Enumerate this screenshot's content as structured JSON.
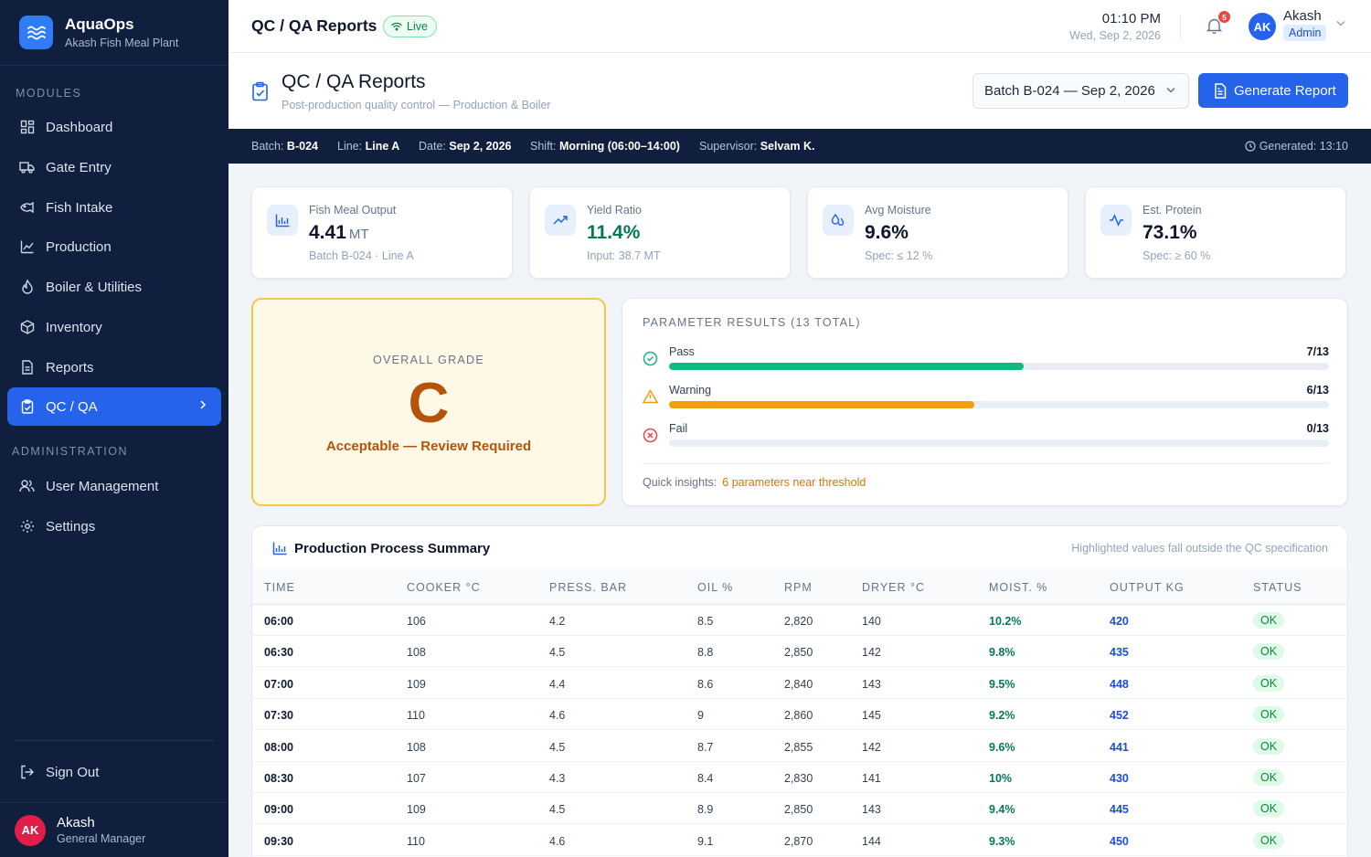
{
  "brand": {
    "name": "AquaOps",
    "subtitle": "Akash Fish Meal Plant"
  },
  "sidebar": {
    "modules_label": "MODULES",
    "admin_label": "ADMINISTRATION",
    "items": [
      {
        "label": "Dashboard",
        "icon": "dashboard-icon"
      },
      {
        "label": "Gate Entry",
        "icon": "truck-icon"
      },
      {
        "label": "Fish Intake",
        "icon": "fish-icon"
      },
      {
        "label": "Production",
        "icon": "factory-icon"
      },
      {
        "label": "Boiler & Utilities",
        "icon": "flame-icon"
      },
      {
        "label": "Inventory",
        "icon": "box-icon"
      },
      {
        "label": "Reports",
        "icon": "file-icon"
      },
      {
        "label": "QC / QA",
        "icon": "clipboard-check-icon",
        "active": true
      }
    ],
    "admin_items": [
      {
        "label": "User Management",
        "icon": "users-icon"
      },
      {
        "label": "Settings",
        "icon": "gear-icon"
      }
    ],
    "sign_out": "Sign Out",
    "user": {
      "initials": "AK",
      "name": "Akash",
      "role": "General Manager"
    }
  },
  "topbar": {
    "title": "QC / QA Reports",
    "live": "Live",
    "time": "01:10 PM",
    "date": "Wed, Sep 2, 2026",
    "notifications": "5",
    "user_initials": "AK",
    "user_name": "Akash",
    "user_role": "Admin"
  },
  "page": {
    "title": "QC / QA Reports",
    "subtitle": "Post-production quality control — Production & Boiler",
    "batch_select": "Batch B-024 — Sep 2, 2026",
    "generate_button": "Generate Report"
  },
  "strip": {
    "batch_label": "Batch:",
    "batch": "B-024",
    "line_label": "Line:",
    "line": "Line A",
    "date_label": "Date:",
    "date": "Sep 2, 2026",
    "shift_label": "Shift:",
    "shift": "Morning (06:00–14:00)",
    "supervisor_label": "Supervisor:",
    "supervisor": "Selvam K.",
    "generated": "Generated: 13:10"
  },
  "kpis": [
    {
      "label": "Fish Meal Output",
      "value": "4.41",
      "unit": "MT",
      "foot": "Batch B-024 · Line A",
      "icon": "chart-icon"
    },
    {
      "label": "Yield Ratio",
      "value": "11.4%",
      "unit": "",
      "foot": "Input: 38.7 MT",
      "icon": "trend-up-icon"
    },
    {
      "label": "Avg Moisture",
      "value": "9.6%",
      "unit": "",
      "foot": "Spec: ≤ 12 %",
      "icon": "droplets-icon"
    },
    {
      "label": "Est. Protein",
      "value": "73.1%",
      "unit": "",
      "foot": "Spec: ≥ 60 %",
      "icon": "activity-icon"
    }
  ],
  "grade": {
    "label": "OVERALL GRADE",
    "letter": "C",
    "description": "Acceptable — Review Required"
  },
  "parameters": {
    "title": "PARAMETER RESULTS (13 TOTAL)",
    "rows": [
      {
        "name": "Pass",
        "count": "7/13",
        "fraction": 0.538,
        "color": "#10b981",
        "icon": "check-circle-icon"
      },
      {
        "name": "Warning",
        "count": "6/13",
        "fraction": 0.462,
        "color": "#f59e0b",
        "icon": "warning-triangle-icon"
      },
      {
        "name": "Fail",
        "count": "0/13",
        "fraction": 0,
        "color": "#ef4444",
        "icon": "x-circle-icon"
      }
    ],
    "insight_label": "Quick insights:",
    "insight_value": "6 parameters near threshold"
  },
  "table": {
    "title": "Production Process Summary",
    "note": "Highlighted values fall outside the QC specification",
    "columns": [
      "TIME",
      "COOKER °C",
      "PRESS. BAR",
      "OIL %",
      "RPM",
      "DRYER °C",
      "MOIST. %",
      "OUTPUT KG",
      "STATUS"
    ],
    "rows": [
      [
        "06:00",
        "106",
        "4.2",
        "8.5",
        "2,820",
        "140",
        "10.2%",
        "420",
        "OK"
      ],
      [
        "06:30",
        "108",
        "4.5",
        "8.8",
        "2,850",
        "142",
        "9.8%",
        "435",
        "OK"
      ],
      [
        "07:00",
        "109",
        "4.4",
        "8.6",
        "2,840",
        "143",
        "9.5%",
        "448",
        "OK"
      ],
      [
        "07:30",
        "110",
        "4.6",
        "9",
        "2,860",
        "145",
        "9.2%",
        "452",
        "OK"
      ],
      [
        "08:00",
        "108",
        "4.5",
        "8.7",
        "2,855",
        "142",
        "9.6%",
        "441",
        "OK"
      ],
      [
        "08:30",
        "107",
        "4.3",
        "8.4",
        "2,830",
        "141",
        "10%",
        "430",
        "OK"
      ],
      [
        "09:00",
        "109",
        "4.5",
        "8.9",
        "2,850",
        "143",
        "9.4%",
        "445",
        "OK"
      ],
      [
        "09:30",
        "110",
        "4.6",
        "9.1",
        "2,870",
        "144",
        "9.3%",
        "450",
        "OK"
      ]
    ]
  }
}
